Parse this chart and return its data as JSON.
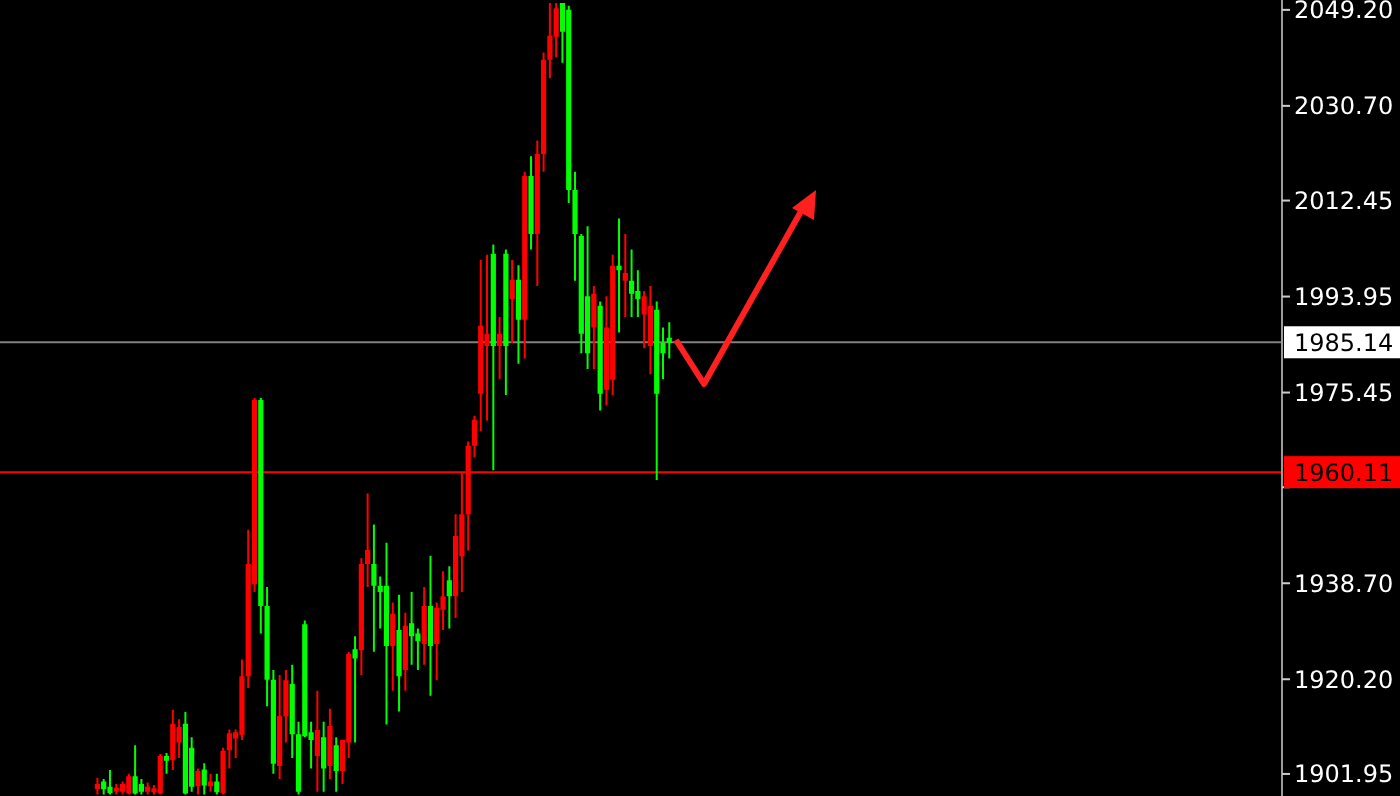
{
  "chart_data": {
    "type": "candlestick",
    "tick_labels": "y",
    "grid": false,
    "ylim": [
      1897.7,
      2051.1
    ],
    "yticks": [
      {
        "value": 1901.95,
        "label": "1901.95"
      },
      {
        "value": 1920.2,
        "label": "1920.20"
      },
      {
        "value": 1938.7,
        "label": "1938.70"
      },
      {
        "value": 1957.2,
        "label": null
      },
      {
        "value": 1975.45,
        "label": "1975.45"
      },
      {
        "value": 1993.95,
        "label": "1993.95"
      },
      {
        "value": 2012.45,
        "label": "2012.45"
      },
      {
        "value": 2030.7,
        "label": "2030.70"
      },
      {
        "value": 2049.2,
        "label": "2049.20"
      }
    ],
    "ref_lines": [
      {
        "axis": "y",
        "value": 1985.14,
        "label": "1985.14",
        "color": "#808080"
      },
      {
        "axis": "y",
        "value": 1960.11,
        "label": "1960.11",
        "color": "#ff0000"
      }
    ],
    "categories": [
      null,
      null,
      null,
      null,
      null,
      null,
      null,
      null,
      null,
      null,
      null,
      null,
      null,
      null,
      null,
      null,
      null,
      null,
      null,
      null,
      null,
      null,
      null,
      null,
      null,
      null,
      null,
      null,
      null,
      null,
      null,
      null,
      null,
      null,
      null,
      null,
      null,
      null,
      null,
      null,
      null,
      null,
      null,
      null,
      null,
      null,
      null,
      null,
      null,
      null,
      null,
      null,
      null,
      null,
      null,
      null,
      null,
      null,
      null,
      null,
      null,
      null,
      null,
      null,
      null,
      null,
      null,
      null,
      null,
      null,
      null,
      null,
      null,
      null,
      null,
      null,
      null,
      null,
      null,
      null,
      null,
      null,
      null,
      null,
      null,
      null,
      null,
      null,
      null,
      null,
      null,
      null,
      null,
      null,
      null,
      null,
      null,
      null,
      null,
      null,
      null,
      null,
      null,
      null,
      null,
      null,
      null,
      null,
      null,
      null,
      null,
      null,
      null,
      null,
      null,
      null,
      null,
      null,
      null,
      null,
      null,
      null,
      null,
      null,
      null,
      null,
      null,
      null,
      null,
      null,
      null,
      null,
      null,
      null,
      null,
      null,
      null,
      null,
      null,
      null,
      null,
      null,
      null,
      null,
      null,
      null,
      null,
      null,
      null,
      null,
      null,
      null,
      null,
      null,
      null,
      null,
      null,
      null,
      null,
      null,
      null,
      null,
      null,
      null,
      null,
      null,
      null,
      null,
      null,
      null,
      null,
      null,
      null,
      null,
      null,
      null,
      null,
      null,
      null,
      null,
      null,
      null,
      null,
      null,
      null,
      null,
      null,
      null,
      null,
      null,
      null,
      null,
      null,
      null,
      null,
      null,
      null,
      null,
      null,
      null,
      null,
      null,
      null,
      null
    ],
    "ohlc": [
      null,
      null,
      null,
      null,
      null,
      null,
      null,
      null,
      null,
      null,
      null,
      null,
      null,
      null,
      null,
      [
        1899,
        1901.2,
        1898,
        1900
      ],
      [
        1900.5,
        1901,
        1898,
        1899
      ],
      [
        1899.5,
        1902.7,
        1898,
        1898.3
      ],
      [
        1898.5,
        1900,
        1898,
        1899.3
      ],
      [
        1898.5,
        1900.5,
        1898,
        1900
      ],
      [
        1898.2,
        1902,
        1898,
        1901.5
      ],
      [
        1901.5,
        1907.5,
        1898,
        1898.2
      ],
      [
        1900,
        1901,
        1898,
        1898.5
      ],
      [
        1898.5,
        1900.3,
        1898,
        1899.5
      ],
      [
        1898.4,
        1899.8,
        1898,
        1899.2
      ],
      [
        1898.2,
        1905.8,
        1898,
        1905.4
      ],
      [
        1905.4,
        1906,
        1902,
        1904.5
      ],
      [
        1904.6,
        1914.3,
        1902.7,
        1911.6
      ],
      [
        1908,
        1912.5,
        1905,
        1911
      ],
      [
        1911.6,
        1913.9,
        1898,
        1898.2
      ],
      [
        1907,
        1909,
        1898.5,
        1899.5
      ],
      [
        1899.6,
        1903,
        1898,
        1902.5
      ],
      [
        1902.8,
        1904,
        1898,
        1899.7
      ],
      [
        1899.6,
        1902,
        1898.5,
        1900.5
      ],
      [
        1900.5,
        1902,
        1898,
        1898.4
      ],
      [
        1898.3,
        1907,
        1898,
        1906.4
      ],
      [
        1906.5,
        1910.5,
        1903,
        1909.8
      ],
      [
        1908.8,
        1910.5,
        1905,
        1910
      ],
      [
        1909.5,
        1924,
        1908.5,
        1920.8
      ],
      [
        1920.8,
        1949,
        1918.5,
        1942.4
      ],
      [
        1938.5,
        1974.4,
        1937,
        1974
      ],
      [
        1974,
        1974.4,
        1929,
        1934.3
      ],
      [
        1934.3,
        1938,
        1915,
        1920.1
      ],
      [
        1920.1,
        1922,
        1902,
        1903.9
      ],
      [
        1903.5,
        1921,
        1901,
        1913.1
      ],
      [
        1913,
        1922,
        1908,
        1920
      ],
      [
        1919.3,
        1923,
        1905,
        1909.6
      ],
      [
        1909.6,
        1912,
        1898,
        1898.5
      ],
      [
        1930.8,
        1931.5,
        1909,
        1909.2
      ],
      [
        1910,
        1912,
        1903,
        1908.5
      ],
      [
        1905.4,
        1918,
        1898.5,
        1910.4
      ],
      [
        1909,
        1912,
        1898.5,
        1903
      ],
      [
        1903.5,
        1914.5,
        1901,
        1911.2
      ],
      [
        1907.5,
        1909,
        1898.5,
        1902.5
      ],
      [
        1902.5,
        1908.5,
        1900,
        1908.5
      ],
      [
        1908,
        1925.5,
        1905,
        1925.1
      ],
      [
        1926,
        1928.5,
        1908,
        1924.2
      ],
      [
        1925.8,
        1943.5,
        1921,
        1942.4
      ],
      [
        1942.4,
        1956,
        1938,
        1945.1
      ],
      [
        1942.4,
        1950,
        1925.5,
        1938.2
      ],
      [
        1938.2,
        1940,
        1930,
        1937
      ],
      [
        1938.2,
        1946.5,
        1911.5,
        1926.6
      ],
      [
        1926.6,
        1935,
        1918,
        1932.8
      ],
      [
        1929.7,
        1936.5,
        1914,
        1920.8
      ],
      [
        1922,
        1933,
        1918,
        1930.5
      ],
      [
        1931,
        1937,
        1923,
        1928.5
      ],
      [
        1929,
        1930,
        1922,
        1927.5
      ],
      [
        1927,
        1938,
        1923,
        1934.3
      ],
      [
        1934.3,
        1944,
        1917,
        1926.6
      ],
      [
        1927,
        1935,
        1920,
        1934
      ],
      [
        1933.6,
        1941,
        1929.7,
        1936.2
      ],
      [
        1939.3,
        1942,
        1930,
        1936.2
      ],
      [
        1936.2,
        1952,
        1932,
        1947.8
      ],
      [
        1943.9,
        1960,
        1937,
        1952
      ],
      [
        1952,
        1966,
        1945,
        1965.2
      ],
      [
        1965.2,
        1971,
        1963,
        1970.2
      ],
      [
        1975.2,
        2001,
        1968,
        1988.3
      ],
      [
        1984.4,
        2002,
        1970,
        1986.8
      ],
      [
        2002.2,
        2004,
        1960.5,
        1984.4
      ],
      [
        1984.4,
        1990,
        1978,
        1986.8
      ],
      [
        2002.2,
        2003,
        1975,
        1984.4
      ],
      [
        1993.5,
        2001,
        1985,
        1997.2
      ],
      [
        1997.2,
        2000,
        1981,
        1989.5
      ],
      [
        1989.5,
        2018,
        1982,
        2017.2
      ],
      [
        2017.2,
        2021,
        2003,
        2006
      ],
      [
        2006,
        2024,
        1996,
        2021.4
      ],
      [
        2021.4,
        2041,
        2018,
        2039.6
      ],
      [
        2039.6,
        2050.5,
        2036,
        2044.2
      ],
      [
        2044,
        2050.5,
        2040,
        2049.5
      ],
      [
        2050.5,
        2050.5,
        2039,
        2045
      ],
      [
        2049.2,
        2050,
        2012,
        2014.5
      ],
      [
        2014.5,
        2018,
        1997,
        2006
      ],
      [
        2005.6,
        2006,
        1983,
        1986.8
      ],
      [
        1994,
        2007.5,
        1980,
        1983
      ],
      [
        1988,
        1996,
        1980,
        1994.5
      ],
      [
        1992.2,
        1993,
        1972,
        1975.2
      ],
      [
        1976,
        1994,
        1973,
        1988
      ],
      [
        1977.9,
        2002,
        1975,
        1999.9
      ],
      [
        1999.9,
        2009,
        1987,
        1999
      ],
      [
        1997,
        2006,
        1990,
        1998.5
      ],
      [
        1997,
        2003,
        1990,
        1994.5
      ],
      [
        1995,
        1999,
        1990,
        1993.5
      ],
      [
        1990.5,
        1995,
        1984,
        1994
      ],
      [
        1984.4,
        1996,
        1979,
        1992.2
      ],
      [
        1991.4,
        1993,
        1958.6,
        1975.2
      ],
      [
        1985,
        1988,
        1978,
        1983
      ],
      [
        1986,
        1989,
        1982,
        1985
      ],
      null,
      null,
      null,
      null,
      null,
      null,
      null,
      null,
      null,
      null,
      null,
      null,
      null,
      null,
      null,
      null,
      null,
      null,
      null,
      null,
      null,
      null,
      null,
      null,
      null,
      null,
      null,
      null,
      null,
      null,
      null,
      null,
      null,
      null,
      null,
      null,
      null,
      null,
      null,
      null,
      null,
      null,
      null,
      null,
      null,
      null,
      null,
      null,
      null,
      null,
      null,
      null,
      null,
      null,
      null,
      null,
      null,
      null,
      null,
      null,
      null,
      null,
      null,
      null,
      null,
      null,
      null,
      null,
      null,
      null,
      null,
      null,
      null,
      null,
      null,
      null,
      null,
      null,
      null,
      null,
      null,
      null,
      null,
      null,
      null,
      null,
      null,
      null,
      null,
      null,
      null,
      null,
      null,
      null,
      null,
      null,
      null
    ],
    "colors": [
      null,
      null,
      null,
      null,
      null,
      null,
      null,
      null,
      null,
      null,
      null,
      null,
      null,
      null,
      null,
      "#ff0000",
      "#00ff00",
      "#00ff00",
      "#ff0000",
      "#ff0000",
      "#ff0000",
      "#00ff00",
      "#00ff00",
      "#ff0000",
      "#ff0000",
      "#ff0000",
      "#00ff00",
      "#ff0000",
      "#ff0000",
      "#00ff00",
      "#00ff00",
      "#ff0000",
      "#00ff00",
      "#ff0000",
      "#00ff00",
      "#ff0000",
      "#ff0000",
      "#ff0000",
      "#ff0000",
      "#ff0000",
      "#ff0000",
      "#00ff00",
      "#00ff00",
      "#00ff00",
      "#ff0000",
      "#ff0000",
      "#00ff00",
      "#00ff00",
      "#00ff00",
      "#00ff00",
      "#ff0000",
      "#00ff00",
      "#ff0000",
      "#00ff00",
      "#ff0000",
      "#ff0000",
      "#00ff00",
      "#ff0000",
      "#ff0000",
      "#00ff00",
      "#00ff00",
      "#00ff00",
      "#ff0000",
      "#00ff00",
      "#ff0000",
      "#00ff00",
      "#00ff00",
      "#ff0000",
      "#00ff00",
      "#ff0000",
      "#ff0000",
      "#00ff00",
      "#ff0000",
      "#ff0000",
      "#ff0000",
      "#ff0000",
      "#ff0000",
      "#ff0000",
      "#00ff00",
      "#ff0000",
      "#00ff00",
      "#ff0000",
      "#00ff00",
      "#ff0000",
      "#00ff00",
      "#ff0000",
      "#ff0000",
      "#ff0000",
      "#ff0000",
      "#00ff00",
      "#00ff00",
      "#00ff00",
      "#00ff00",
      "#00ff00",
      "#ff0000",
      "#00ff00",
      "#ff0000",
      "#ff0000",
      "#00ff00",
      "#ff0000",
      "#00ff00",
      "#00ff00",
      "#ff0000",
      "#ff0000",
      "#00ff00",
      "#00ff00",
      "#00ff00",
      null,
      null,
      null,
      null,
      null,
      null,
      null,
      null,
      null,
      null,
      null,
      null,
      null,
      null,
      null,
      null,
      null,
      null,
      null,
      null,
      null,
      null,
      null,
      null,
      null,
      null,
      null,
      null,
      null,
      null,
      null,
      null,
      null,
      null,
      null,
      null,
      null,
      null,
      null,
      null,
      null,
      null,
      null,
      null,
      null,
      null,
      null,
      null,
      null,
      null,
      null,
      null,
      null,
      null,
      null,
      null,
      null,
      null,
      null,
      null,
      null,
      null,
      null,
      null,
      null,
      null,
      null,
      null,
      null,
      null,
      null,
      null,
      null,
      null,
      null,
      null,
      null,
      null,
      null,
      null,
      null,
      null,
      null,
      null,
      null,
      null,
      null,
      null,
      null,
      null,
      null,
      null,
      null,
      null,
      null,
      null,
      null
    ]
  }
}
